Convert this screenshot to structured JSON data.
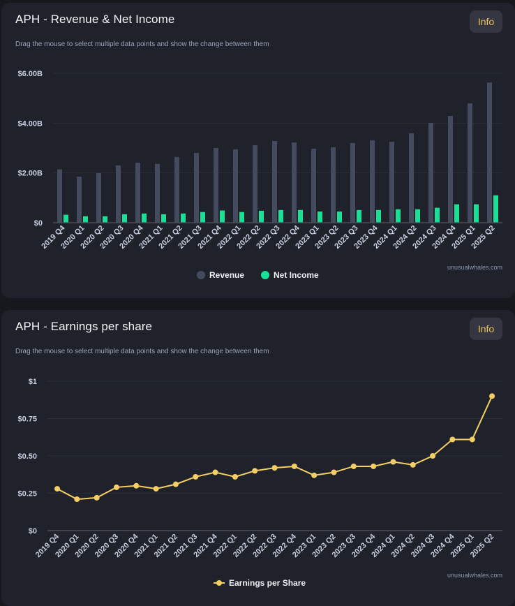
{
  "colors": {
    "revenue": "#454b5e",
    "net_income": "#19e096",
    "eps": "#f5cf64",
    "info_text": "#f1c15a"
  },
  "revenue_card": {
    "title": "APH - Revenue & Net Income",
    "subtitle": "Drag the mouse to select multiple data points and show the change between them",
    "info_label": "Info",
    "watermark": "unusualwhales.com",
    "legend": [
      {
        "name": "Revenue",
        "icon": "circle-dot-icon"
      },
      {
        "name": "Net Income",
        "icon": "circle-dot-icon"
      }
    ]
  },
  "eps_card": {
    "title": "APH - Earnings per share",
    "subtitle": "Drag the mouse to select multiple data points and show the change between them",
    "info_label": "Info",
    "watermark": "unusualwhales.com",
    "legend": [
      {
        "name": "Earnings per Share",
        "icon": "line-marker-icon"
      }
    ]
  },
  "chart_data": [
    {
      "type": "bar",
      "title": "APH - Revenue & Net Income",
      "xlabel": "",
      "ylabel": "",
      "ylim": [
        0,
        6
      ],
      "y_unit": "billions USD",
      "yticks": [
        0,
        2,
        4,
        6
      ],
      "ytick_labels": [
        "$0",
        "$2.00B",
        "$4.00B",
        "$6.00B"
      ],
      "grid": true,
      "legend_position": "bottom-center",
      "categories": [
        "2019 Q4",
        "2020 Q1",
        "2020 Q2",
        "2020 Q3",
        "2020 Q4",
        "2021 Q1",
        "2021 Q2",
        "2021 Q3",
        "2021 Q4",
        "2022 Q1",
        "2022 Q2",
        "2022 Q3",
        "2022 Q4",
        "2023 Q1",
        "2023 Q2",
        "2023 Q3",
        "2023 Q4",
        "2024 Q1",
        "2024 Q2",
        "2024 Q3",
        "2024 Q4",
        "2025 Q1",
        "2025 Q2"
      ],
      "series": [
        {
          "name": "Revenue",
          "values": [
            2.14,
            1.85,
            1.99,
            2.3,
            2.41,
            2.36,
            2.64,
            2.8,
            3.0,
            2.95,
            3.11,
            3.28,
            3.22,
            2.97,
            3.03,
            3.2,
            3.31,
            3.25,
            3.59,
            4.01,
            4.29,
            4.79,
            5.63
          ]
        },
        {
          "name": "Net Income",
          "values": [
            0.32,
            0.26,
            0.26,
            0.34,
            0.37,
            0.34,
            0.37,
            0.43,
            0.49,
            0.43,
            0.48,
            0.51,
            0.51,
            0.45,
            0.45,
            0.51,
            0.51,
            0.54,
            0.54,
            0.6,
            0.74,
            0.74,
            1.1
          ]
        }
      ]
    },
    {
      "type": "line",
      "title": "APH - Earnings per share",
      "xlabel": "",
      "ylabel": "",
      "ylim": [
        0,
        1
      ],
      "yticks": [
        0,
        0.25,
        0.5,
        0.75,
        1
      ],
      "ytick_labels": [
        "$0",
        "$0.25",
        "$0.50",
        "$0.75",
        "$1"
      ],
      "grid": true,
      "legend_position": "bottom-center",
      "categories": [
        "2019 Q4",
        "2020 Q1",
        "2020 Q2",
        "2020 Q3",
        "2020 Q4",
        "2021 Q1",
        "2021 Q2",
        "2021 Q3",
        "2021 Q4",
        "2022 Q1",
        "2022 Q2",
        "2022 Q3",
        "2022 Q4",
        "2023 Q1",
        "2023 Q2",
        "2023 Q3",
        "2023 Q4",
        "2024 Q1",
        "2024 Q2",
        "2024 Q3",
        "2024 Q4",
        "2025 Q1",
        "2025 Q2"
      ],
      "series": [
        {
          "name": "Earnings per Share",
          "values": [
            0.28,
            0.21,
            0.22,
            0.29,
            0.3,
            0.28,
            0.31,
            0.36,
            0.39,
            0.36,
            0.4,
            0.42,
            0.43,
            0.37,
            0.39,
            0.43,
            0.43,
            0.46,
            0.44,
            0.5,
            0.61,
            0.61,
            0.9
          ]
        }
      ]
    }
  ]
}
